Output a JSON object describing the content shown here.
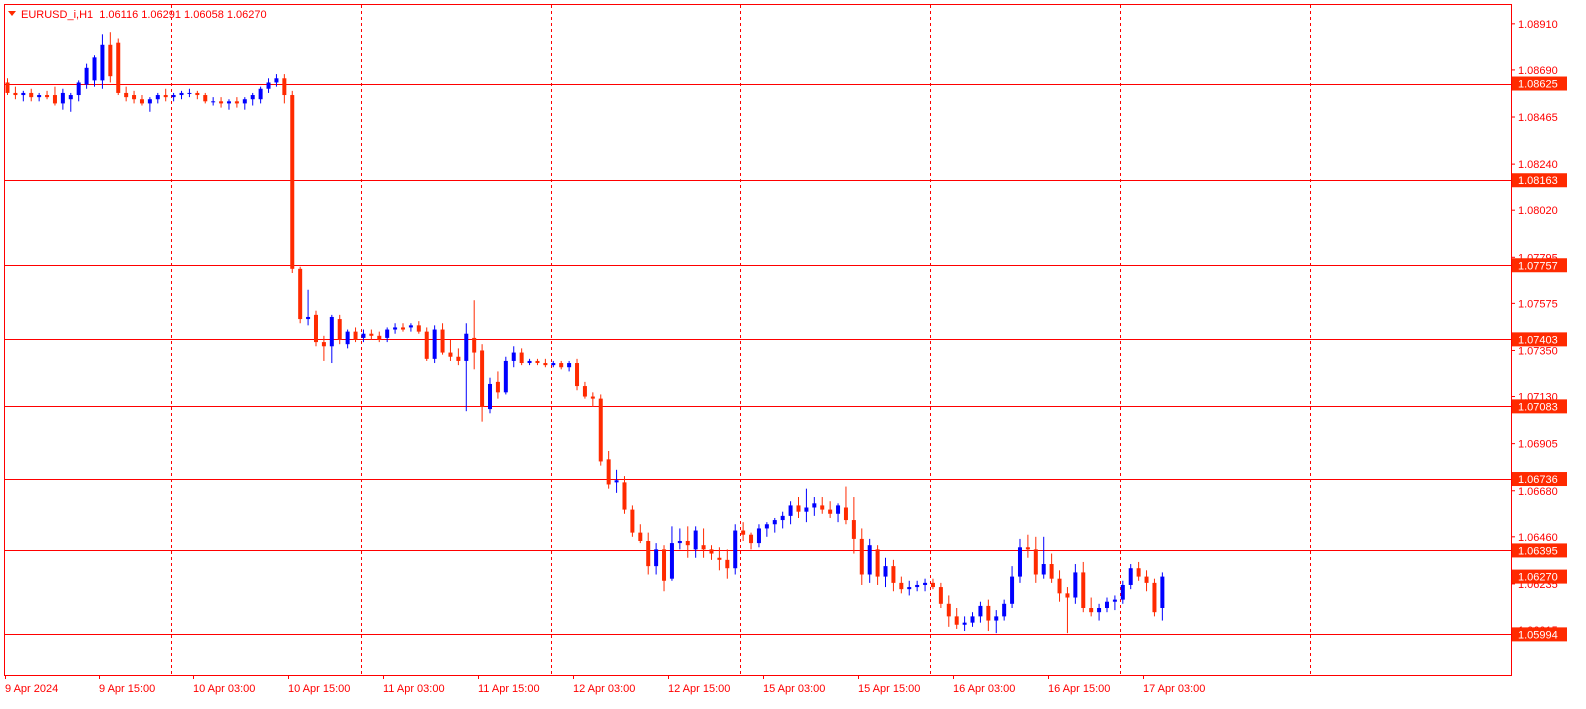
{
  "chart_data": {
    "type": "candlestick",
    "symbol_header": "EURUSD_i,H1  1.06116 1.06291 1.06058 1.06270",
    "ylim": [
      1.058,
      1.09
    ],
    "x_tick_labels": [
      "9 Apr 2024",
      "9 Apr 15:00",
      "10 Apr 03:00",
      "10 Apr 15:00",
      "11 Apr 03:00",
      "11 Apr 15:00",
      "12 Apr 03:00",
      "12 Apr 15:00",
      "15 Apr 03:00",
      "15 Apr 15:00",
      "16 Apr 03:00",
      "16 Apr 15:00",
      "17 Apr 03:00"
    ],
    "y_tick_labels": [
      "1.08910",
      "1.08690",
      "1.08465",
      "1.08240",
      "1.08020",
      "1.07795",
      "1.07575",
      "1.07350",
      "1.07130",
      "1.06905",
      "1.06680",
      "1.06460",
      "1.06235",
      "1.06015"
    ],
    "horizontal_levels": [
      "1.08625",
      "1.08163",
      "1.07757",
      "1.07403",
      "1.07083",
      "1.06736",
      "1.06395",
      "1.05994"
    ],
    "current_price": "1.06270",
    "vertical_grid_count": 7,
    "colors": {
      "bull": "#0000ff",
      "bear": "#ff2a00",
      "frame": "#ff0000",
      "level": "#ff0000",
      "text": "#ff0000",
      "badge": "#ff2a00",
      "badge_text": "#ffffff"
    },
    "candles": [
      [
        1.0863,
        1.0865,
        1.0857,
        1.0858
      ],
      [
        1.0858,
        1.0861,
        1.0855,
        1.0857
      ],
      [
        1.0857,
        1.0859,
        1.0854,
        1.0858
      ],
      [
        1.0858,
        1.086,
        1.0854,
        1.0856
      ],
      [
        1.0856,
        1.0858,
        1.0854,
        1.0857
      ],
      [
        1.0857,
        1.0859,
        1.0855,
        1.0856
      ],
      [
        1.0857,
        1.0861,
        1.0852,
        1.0853
      ],
      [
        1.0853,
        1.086,
        1.085,
        1.0858
      ],
      [
        1.0855,
        1.0858,
        1.0849,
        1.0857
      ],
      [
        1.0857,
        1.0864,
        1.0854,
        1.0863
      ],
      [
        1.0862,
        1.0872,
        1.086,
        1.087
      ],
      [
        1.0864,
        1.0876,
        1.0861,
        1.0875
      ],
      [
        1.0864,
        1.0886,
        1.086,
        1.0881
      ],
      [
        1.0881,
        1.0887,
        1.0863,
        1.0866
      ],
      [
        1.0882,
        1.0884,
        1.0857,
        1.0858
      ],
      [
        1.0858,
        1.0861,
        1.0854,
        1.0856
      ],
      [
        1.0857,
        1.0859,
        1.0853,
        1.0855
      ],
      [
        1.0855,
        1.0857,
        1.0852,
        1.0853
      ],
      [
        1.0853,
        1.0856,
        1.0849,
        1.0855
      ],
      [
        1.0855,
        1.0858,
        1.0853,
        1.0857
      ],
      [
        1.0857,
        1.086,
        1.0854,
        1.0856
      ],
      [
        1.0856,
        1.0858,
        1.0854,
        1.0857
      ],
      [
        1.0857,
        1.0859,
        1.0855,
        1.0858
      ],
      [
        1.0858,
        1.086,
        1.0856,
        1.0858
      ],
      [
        1.0858,
        1.0859,
        1.0855,
        1.0857
      ],
      [
        1.0857,
        1.0858,
        1.0853,
        1.0854
      ],
      [
        1.0854,
        1.0856,
        1.0852,
        1.0854
      ],
      [
        1.0854,
        1.0856,
        1.0851,
        1.0853
      ],
      [
        1.0853,
        1.0855,
        1.085,
        1.0854
      ],
      [
        1.0854,
        1.0856,
        1.0851,
        1.0853
      ],
      [
        1.0853,
        1.0856,
        1.085,
        1.0855
      ],
      [
        1.0855,
        1.0858,
        1.0852,
        1.0857
      ],
      [
        1.0855,
        1.0861,
        1.0853,
        1.086
      ],
      [
        1.086,
        1.0865,
        1.0858,
        1.0863
      ],
      [
        1.0863,
        1.0867,
        1.0861,
        1.0865
      ],
      [
        1.0865,
        1.0867,
        1.0853,
        1.0857
      ],
      [
        1.0857,
        1.0859,
        1.0772,
        1.0774
      ],
      [
        1.0774,
        1.0775,
        1.0748,
        1.075
      ],
      [
        1.075,
        1.0764,
        1.0747,
        1.0751
      ],
      [
        1.0752,
        1.0754,
        1.0737,
        1.0739
      ],
      [
        1.0739,
        1.0742,
        1.073,
        1.0737
      ],
      [
        1.0737,
        1.0752,
        1.0729,
        1.0751
      ],
      [
        1.075,
        1.0752,
        1.0738,
        1.074
      ],
      [
        1.0738,
        1.0745,
        1.0736,
        1.0744
      ],
      [
        1.0744,
        1.0746,
        1.0739,
        1.074
      ],
      [
        1.0741,
        1.0745,
        1.0739,
        1.0743
      ],
      [
        1.0743,
        1.0745,
        1.074,
        1.0742
      ],
      [
        1.0742,
        1.0744,
        1.0739,
        1.074
      ],
      [
        1.0741,
        1.0746,
        1.0739,
        1.0745
      ],
      [
        1.0745,
        1.0748,
        1.0743,
        1.0746
      ],
      [
        1.0746,
        1.0748,
        1.0744,
        1.0745
      ],
      [
        1.0746,
        1.0748,
        1.0744,
        1.0747
      ],
      [
        1.0747,
        1.0749,
        1.0743,
        1.0744
      ],
      [
        1.0744,
        1.0746,
        1.073,
        1.0731
      ],
      [
        1.0731,
        1.0747,
        1.0729,
        1.0745
      ],
      [
        1.0745,
        1.0748,
        1.0733,
        1.0734
      ],
      [
        1.0734,
        1.074,
        1.073,
        1.0732
      ],
      [
        1.0732,
        1.0736,
        1.0728,
        1.073
      ],
      [
        1.073,
        1.0748,
        1.0706,
        1.0743
      ],
      [
        1.0741,
        1.0759,
        1.0726,
        1.0734
      ],
      [
        1.0735,
        1.0738,
        1.0701,
        1.0708
      ],
      [
        1.0707,
        1.0722,
        1.0705,
        1.0719
      ],
      [
        1.072,
        1.0725,
        1.0712,
        1.0715
      ],
      [
        1.0715,
        1.0732,
        1.0714,
        1.073
      ],
      [
        1.073,
        1.0737,
        1.0727,
        1.0734
      ],
      [
        1.0734,
        1.0736,
        1.0728,
        1.0729
      ],
      [
        1.0729,
        1.0731,
        1.0728,
        1.073
      ],
      [
        1.073,
        1.0731,
        1.0728,
        1.0729
      ],
      [
        1.0729,
        1.0731,
        1.0727,
        1.0728
      ],
      [
        1.0728,
        1.073,
        1.0727,
        1.0729
      ],
      [
        1.0729,
        1.073,
        1.0726,
        1.0727
      ],
      [
        1.0727,
        1.073,
        1.0725,
        1.0729
      ],
      [
        1.0729,
        1.0731,
        1.0716,
        1.0718
      ],
      [
        1.0718,
        1.072,
        1.0712,
        1.0713
      ],
      [
        1.0713,
        1.0715,
        1.0708,
        1.0712
      ],
      [
        1.0712,
        1.0714,
        1.068,
        1.0682
      ],
      [
        1.0683,
        1.0687,
        1.0669,
        1.0671
      ],
      [
        1.0672,
        1.0678,
        1.0667,
        1.0673
      ],
      [
        1.0672,
        1.0675,
        1.0657,
        1.0659
      ],
      [
        1.0659,
        1.0661,
        1.0646,
        1.0648
      ],
      [
        1.0648,
        1.0652,
        1.0643,
        1.0644
      ],
      [
        1.0644,
        1.0648,
        1.0628,
        1.0632
      ],
      [
        1.0632,
        1.0643,
        1.0628,
        1.064
      ],
      [
        1.064,
        1.0642,
        1.062,
        1.0625
      ],
      [
        1.0626,
        1.0651,
        1.0625,
        1.0643
      ],
      [
        1.0643,
        1.065,
        1.064,
        1.0644
      ],
      [
        1.0644,
        1.0651,
        1.0636,
        1.0642
      ],
      [
        1.064,
        1.0651,
        1.0636,
        1.0649
      ],
      [
        1.0642,
        1.065,
        1.0636,
        1.064
      ],
      [
        1.064,
        1.0642,
        1.0635,
        1.0638
      ],
      [
        1.0636,
        1.0641,
        1.063,
        1.0635
      ],
      [
        1.0635,
        1.064,
        1.0626,
        1.0631
      ],
      [
        1.0631,
        1.0652,
        1.0628,
        1.0649
      ],
      [
        1.0649,
        1.0653,
        1.0644,
        1.0647
      ],
      [
        1.0647,
        1.0648,
        1.064,
        1.0643
      ],
      [
        1.0643,
        1.0652,
        1.0641,
        1.065
      ],
      [
        1.065,
        1.0653,
        1.0646,
        1.0652
      ],
      [
        1.0652,
        1.0655,
        1.0648,
        1.0654
      ],
      [
        1.0654,
        1.0658,
        1.065,
        1.0656
      ],
      [
        1.0656,
        1.0663,
        1.0652,
        1.0661
      ],
      [
        1.0661,
        1.0665,
        1.0655,
        1.0658
      ],
      [
        1.0658,
        1.0669,
        1.0653,
        1.066
      ],
      [
        1.066,
        1.0665,
        1.0656,
        1.0662
      ],
      [
        1.0661,
        1.0665,
        1.0657,
        1.0659
      ],
      [
        1.0659,
        1.0663,
        1.0655,
        1.0657
      ],
      [
        1.0657,
        1.0662,
        1.0653,
        1.0661
      ],
      [
        1.066,
        1.067,
        1.0652,
        1.0654
      ],
      [
        1.0654,
        1.0665,
        1.0638,
        1.0645
      ],
      [
        1.0645,
        1.065,
        1.0623,
        1.0628
      ],
      [
        1.0628,
        1.0645,
        1.0624,
        1.0642
      ],
      [
        1.064,
        1.0642,
        1.0623,
        1.0627
      ],
      [
        1.0627,
        1.0636,
        1.0622,
        1.0632
      ],
      [
        1.0632,
        1.0635,
        1.062,
        1.0624
      ],
      [
        1.0624,
        1.0627,
        1.0619,
        1.0621
      ],
      [
        1.0621,
        1.0625,
        1.0618,
        1.0622
      ],
      [
        1.0622,
        1.0625,
        1.062,
        1.0623
      ],
      [
        1.0623,
        1.0626,
        1.062,
        1.0624
      ],
      [
        1.0624,
        1.0626,
        1.0621,
        1.0622
      ],
      [
        1.0622,
        1.0624,
        1.0612,
        1.0614
      ],
      [
        1.0614,
        1.0618,
        1.0603,
        1.0608
      ],
      [
        1.0608,
        1.0612,
        1.0602,
        1.0604
      ],
      [
        1.0604,
        1.0608,
        1.0601,
        1.0605
      ],
      [
        1.0605,
        1.061,
        1.0603,
        1.0608
      ],
      [
        1.0608,
        1.0615,
        1.0605,
        1.0613
      ],
      [
        1.0613,
        1.0616,
        1.0601,
        1.0606
      ],
      [
        1.0606,
        1.0611,
        1.06,
        1.0608
      ],
      [
        1.0608,
        1.0616,
        1.0606,
        1.0614
      ],
      [
        1.0614,
        1.0632,
        1.0612,
        1.0627
      ],
      [
        1.0627,
        1.0645,
        1.0624,
        1.0641
      ],
      [
        1.0641,
        1.0647,
        1.0636,
        1.064
      ],
      [
        1.064,
        1.0646,
        1.0624,
        1.0628
      ],
      [
        1.0628,
        1.0646,
        1.0626,
        1.0633
      ],
      [
        1.0633,
        1.0638,
        1.0624,
        1.0626
      ],
      [
        1.0626,
        1.063,
        1.0615,
        1.0619
      ],
      [
        1.0619,
        1.0622,
        1.06,
        1.0617
      ],
      [
        1.0617,
        1.0633,
        1.0614,
        1.0629
      ],
      [
        1.0629,
        1.0634,
        1.061,
        1.0612
      ],
      [
        1.0612,
        1.0617,
        1.0608,
        1.061
      ],
      [
        1.061,
        1.0614,
        1.0606,
        1.0612
      ],
      [
        1.0612,
        1.0617,
        1.061,
        1.0615
      ],
      [
        1.0615,
        1.0618,
        1.0611,
        1.0616
      ],
      [
        1.0616,
        1.0625,
        1.0614,
        1.0623
      ],
      [
        1.0623,
        1.0633,
        1.0621,
        1.0631
      ],
      [
        1.0631,
        1.0634,
        1.0625,
        1.0627
      ],
      [
        1.0627,
        1.063,
        1.062,
        1.0624
      ],
      [
        1.0624,
        1.0626,
        1.0608,
        1.061
      ],
      [
        1.0612,
        1.0629,
        1.0606,
        1.0627
      ]
    ]
  }
}
